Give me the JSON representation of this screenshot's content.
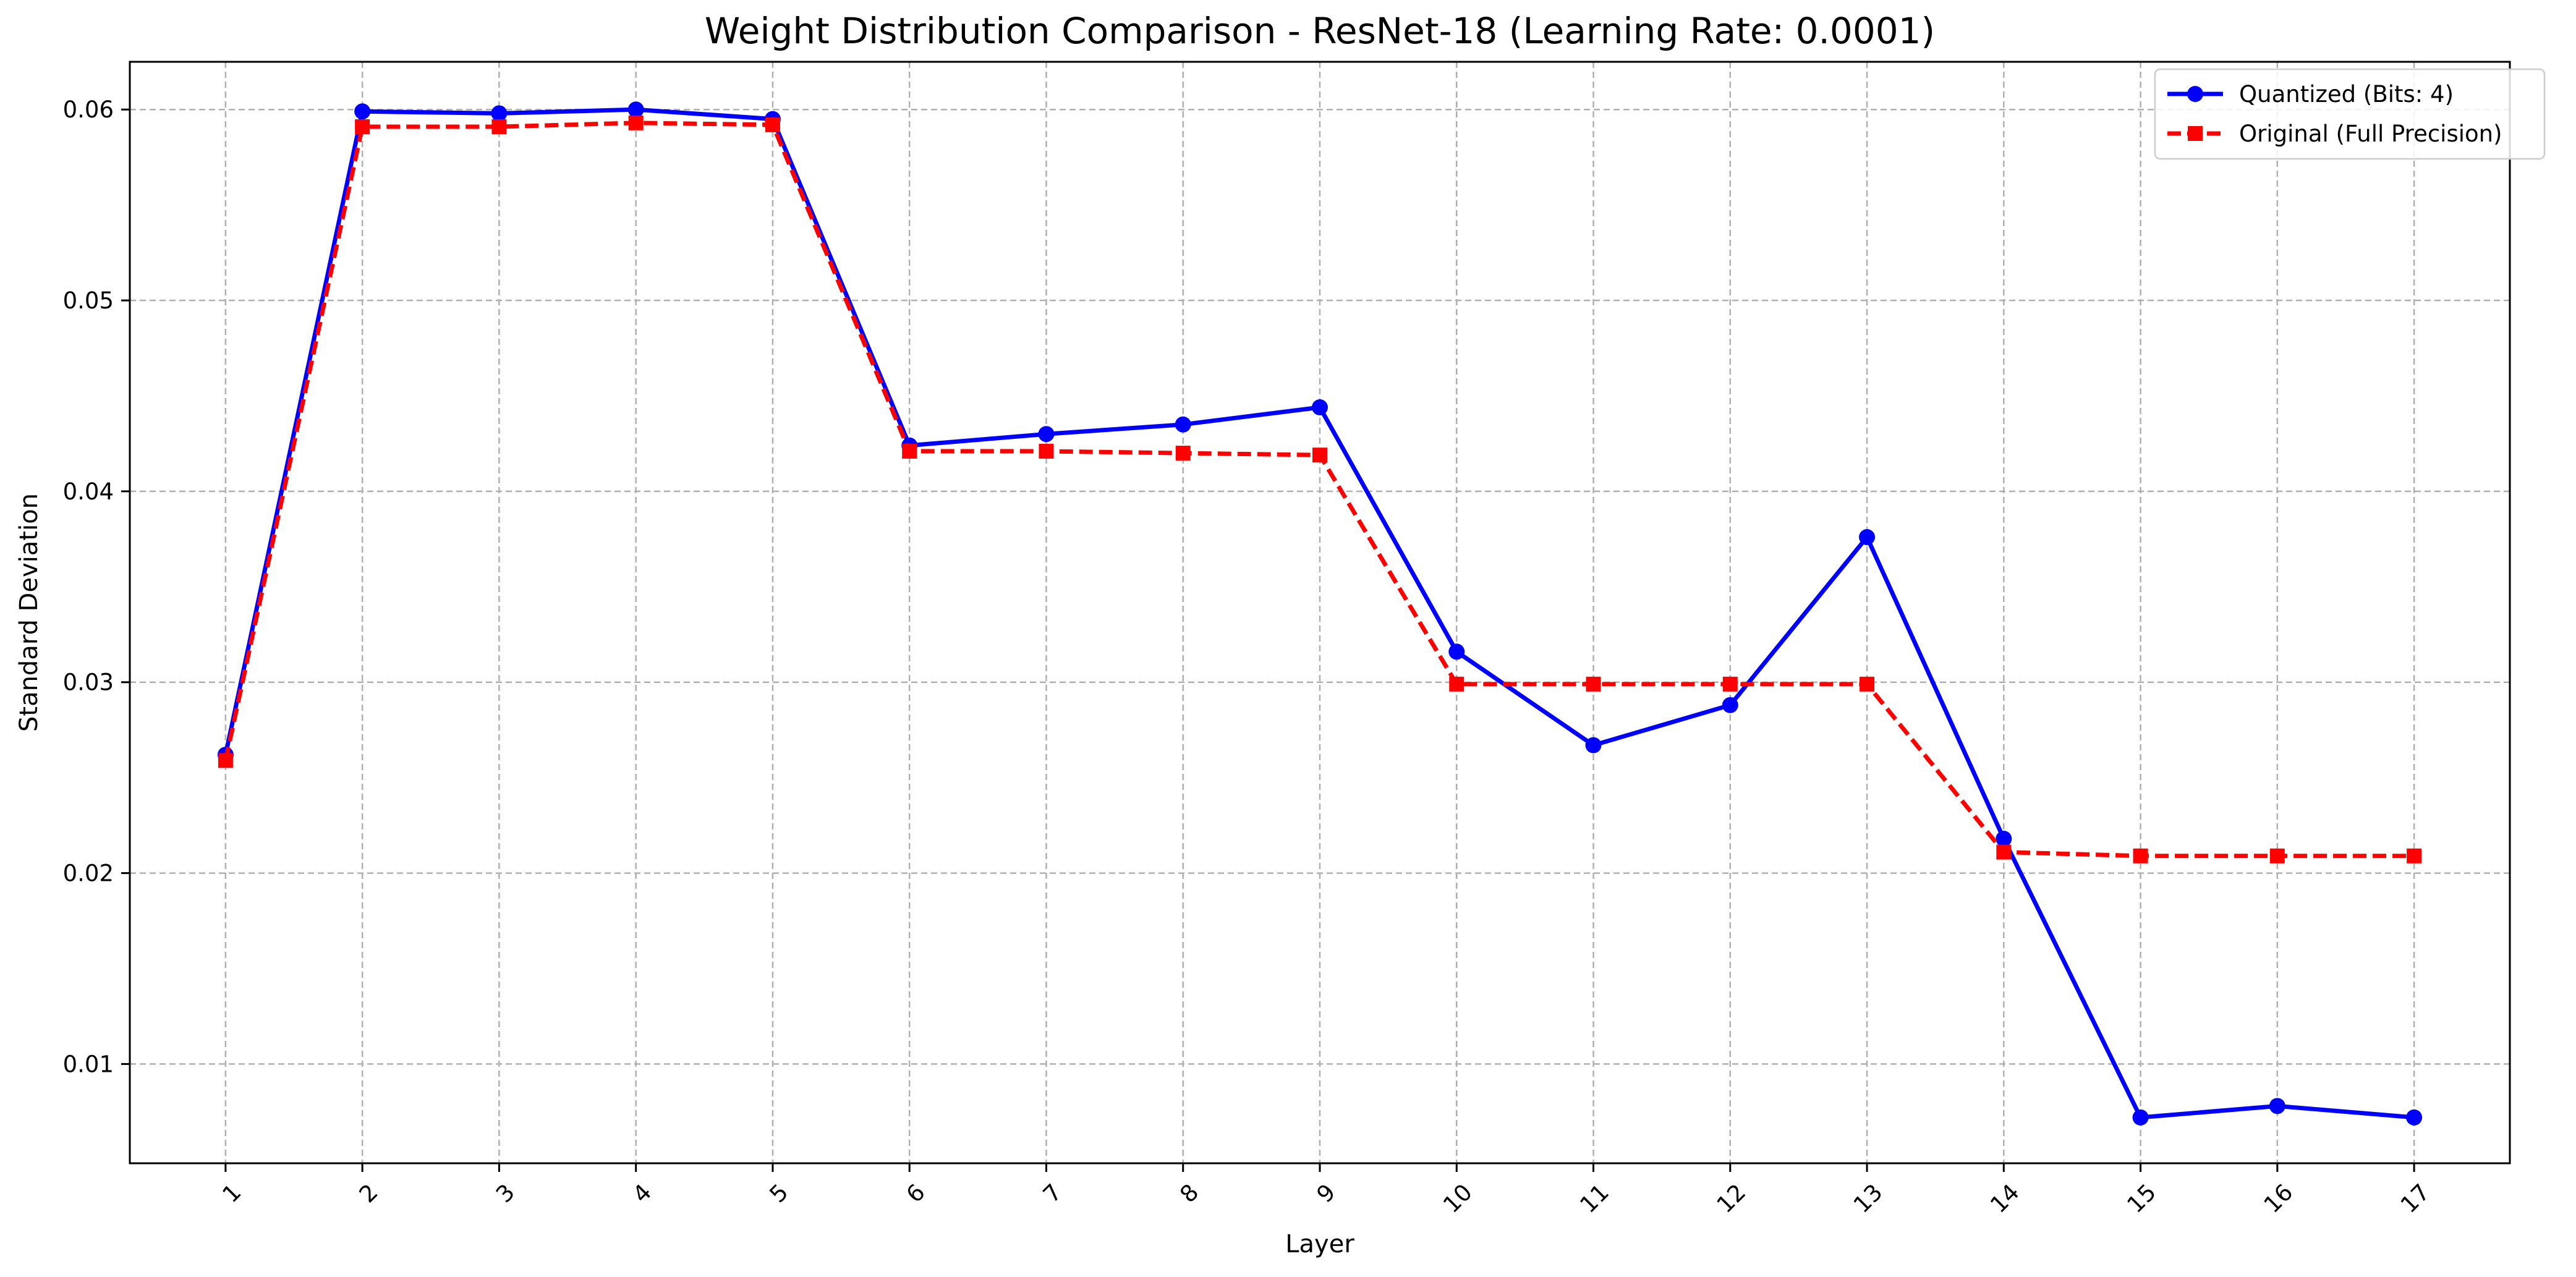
{
  "chart_data": {
    "type": "line",
    "title": "Weight Distribution Comparison - ResNet-18 (Learning Rate: 0.0001)",
    "xlabel": "Layer",
    "ylabel": "Standard Deviation",
    "x": [
      "1",
      "2",
      "3",
      "4",
      "5",
      "6",
      "7",
      "8",
      "9",
      "10",
      "11",
      "12",
      "13",
      "14",
      "15",
      "16",
      "17"
    ],
    "xlim": [
      0.3,
      17.7
    ],
    "ylim": [
      0.0048,
      0.0625
    ],
    "yticks": [
      "0.01",
      "0.02",
      "0.03",
      "0.04",
      "0.05",
      "0.06"
    ],
    "grid": true,
    "legend_position": "top-right",
    "series": [
      {
        "name": "Quantized (Bits: 4)",
        "color": "#0000ff",
        "line_style": "solid",
        "marker": "circle",
        "values": [
          0.0262,
          0.0599,
          0.0598,
          0.06,
          0.0595,
          0.0424,
          0.043,
          0.0435,
          0.0444,
          0.0316,
          0.0267,
          0.0288,
          0.0376,
          0.0218,
          0.0072,
          0.0078,
          0.0072
        ]
      },
      {
        "name": "Original (Full Precision)",
        "color": "#ff0000",
        "line_style": "dashed",
        "marker": "square",
        "values": [
          0.0259,
          0.0591,
          0.0591,
          0.0593,
          0.0592,
          0.0421,
          0.0421,
          0.042,
          0.0419,
          0.0299,
          0.0299,
          0.0299,
          0.0299,
          0.0211,
          0.0209,
          0.0209,
          0.0209
        ]
      }
    ]
  }
}
